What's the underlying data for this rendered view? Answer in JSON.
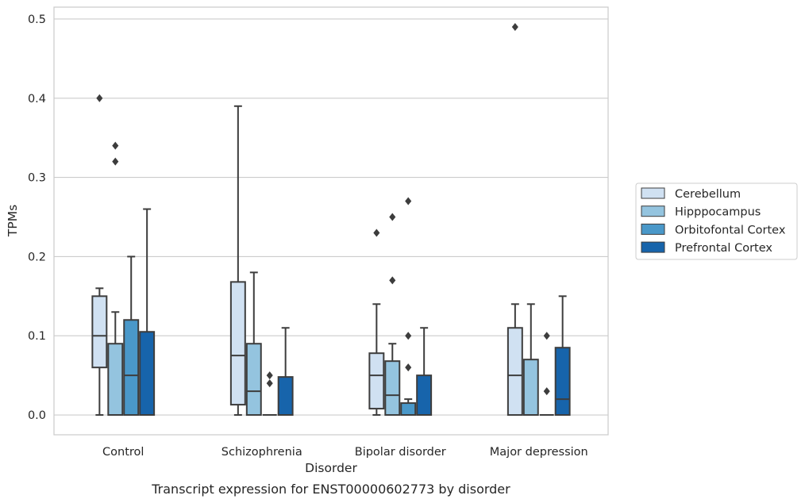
{
  "caption": "Transcript expression for ENST00000602773 by disorder",
  "chart_data": {
    "type": "box",
    "xlabel": "Disorder",
    "ylabel": "TPMs",
    "ylim": [
      -0.025,
      0.515
    ],
    "yticks": [
      0.0,
      0.1,
      0.2,
      0.3,
      0.4,
      0.5
    ],
    "ytick_labels": [
      "0.0",
      "0.1",
      "0.2",
      "0.3",
      "0.4",
      "0.5"
    ],
    "grid": "horizontal",
    "legend_position": "right",
    "categories": [
      "Control",
      "Schizophrenia",
      "Bipolar disorder",
      "Major depression"
    ],
    "series": [
      {
        "name": "Cerebellum",
        "color": "#d0e1f2",
        "boxes": [
          {
            "min": 0.0,
            "q1": 0.06,
            "median": 0.1,
            "q3": 0.15,
            "max": 0.16,
            "outliers": [
              0.4
            ]
          },
          {
            "min": 0.0,
            "q1": 0.013,
            "median": 0.075,
            "q3": 0.168,
            "max": 0.39,
            "outliers": []
          },
          {
            "min": 0.0,
            "q1": 0.008,
            "median": 0.05,
            "q3": 0.078,
            "max": 0.14,
            "outliers": [
              0.23
            ]
          },
          {
            "min": 0.0,
            "q1": 0.0,
            "median": 0.05,
            "q3": 0.11,
            "max": 0.14,
            "outliers": [
              0.49
            ]
          }
        ]
      },
      {
        "name": "Hipppocampus",
        "color": "#94c4df",
        "boxes": [
          {
            "min": 0.0,
            "q1": 0.0,
            "median": 0.0,
            "q3": 0.09,
            "max": 0.13,
            "outliers": [
              0.34,
              0.32
            ]
          },
          {
            "min": 0.0,
            "q1": 0.0,
            "median": 0.03,
            "q3": 0.09,
            "max": 0.18,
            "outliers": []
          },
          {
            "min": 0.0,
            "q1": 0.0,
            "median": 0.025,
            "q3": 0.068,
            "max": 0.09,
            "outliers": [
              0.25,
              0.17
            ]
          },
          {
            "min": 0.0,
            "q1": 0.0,
            "median": 0.0,
            "q3": 0.07,
            "max": 0.14,
            "outliers": []
          }
        ]
      },
      {
        "name": "Orbitofontal Cortex",
        "color": "#4a98c9",
        "boxes": [
          {
            "min": 0.0,
            "q1": 0.0,
            "median": 0.05,
            "q3": 0.12,
            "max": 0.2,
            "outliers": []
          },
          {
            "min": 0.0,
            "q1": 0.0,
            "median": 0.0,
            "q3": 0.0,
            "max": 0.0,
            "outliers": [
              0.05,
              0.04
            ]
          },
          {
            "min": 0.0,
            "q1": 0.0,
            "median": 0.0,
            "q3": 0.015,
            "max": 0.02,
            "outliers": [
              0.27,
              0.1,
              0.06
            ]
          },
          {
            "min": 0.0,
            "q1": 0.0,
            "median": 0.0,
            "q3": 0.0,
            "max": 0.0,
            "outliers": [
              0.1,
              0.03
            ]
          }
        ]
      },
      {
        "name": "Prefrontal Cortex",
        "color": "#1764ab",
        "boxes": [
          {
            "min": 0.0,
            "q1": 0.0,
            "median": 0.0,
            "q3": 0.105,
            "max": 0.26,
            "outliers": []
          },
          {
            "min": 0.0,
            "q1": 0.0,
            "median": 0.0,
            "q3": 0.048,
            "max": 0.11,
            "outliers": []
          },
          {
            "min": 0.0,
            "q1": 0.0,
            "median": 0.0,
            "q3": 0.05,
            "max": 0.11,
            "outliers": []
          },
          {
            "min": 0.0,
            "q1": 0.0,
            "median": 0.02,
            "q3": 0.085,
            "max": 0.15,
            "outliers": []
          }
        ]
      }
    ]
  }
}
